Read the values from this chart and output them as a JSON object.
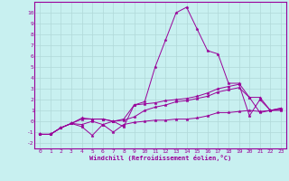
{
  "xlabel": "Windchill (Refroidissement éolien,°C)",
  "background_color": "#c8f0f0",
  "line_color": "#990099",
  "grid_color": "#b0d8d8",
  "xlim": [
    -0.5,
    23.5
  ],
  "ylim": [
    -2.5,
    11.0
  ],
  "xticks": [
    0,
    1,
    2,
    3,
    4,
    5,
    6,
    7,
    8,
    9,
    10,
    11,
    12,
    13,
    14,
    15,
    16,
    17,
    18,
    19,
    20,
    21,
    22,
    23
  ],
  "yticks": [
    -2,
    -1,
    0,
    1,
    2,
    3,
    4,
    5,
    6,
    7,
    8,
    9,
    10
  ],
  "series": [
    {
      "x": [
        0,
        1,
        2,
        3,
        4,
        5,
        6,
        7,
        8,
        9,
        10,
        11,
        12,
        13,
        14,
        15,
        16,
        17,
        18,
        19,
        20,
        21,
        22,
        23
      ],
      "y": [
        -1.2,
        -1.2,
        -0.6,
        -0.2,
        -0.3,
        0.0,
        -0.3,
        0.0,
        -0.5,
        1.5,
        1.8,
        5.0,
        7.5,
        10.0,
        10.5,
        8.5,
        6.5,
        6.2,
        3.5,
        3.5,
        2.2,
        0.8,
        1.0,
        1.1
      ]
    },
    {
      "x": [
        0,
        1,
        2,
        3,
        4,
        5,
        6,
        7,
        8,
        9,
        10,
        11,
        12,
        13,
        14,
        15,
        16,
        17,
        18,
        19,
        20,
        21,
        22,
        23
      ],
      "y": [
        -1.2,
        -1.2,
        -0.6,
        -0.2,
        -0.5,
        -1.3,
        -0.3,
        -1.0,
        -0.3,
        -0.1,
        0.0,
        0.1,
        0.1,
        0.2,
        0.2,
        0.3,
        0.5,
        0.8,
        0.8,
        0.9,
        1.0,
        0.9,
        1.0,
        1.0
      ]
    },
    {
      "x": [
        0,
        1,
        2,
        3,
        4,
        5,
        6,
        7,
        8,
        9,
        10,
        11,
        12,
        13,
        14,
        15,
        16,
        17,
        18,
        19,
        20,
        21,
        22,
        23
      ],
      "y": [
        -1.2,
        -1.2,
        -0.6,
        -0.2,
        0.2,
        0.2,
        0.2,
        0.0,
        0.1,
        0.4,
        1.0,
        1.3,
        1.5,
        1.8,
        1.9,
        2.1,
        2.3,
        2.7,
        2.9,
        3.1,
        2.2,
        2.2,
        1.0,
        1.2
      ]
    },
    {
      "x": [
        0,
        1,
        2,
        3,
        4,
        5,
        6,
        7,
        8,
        9,
        10,
        11,
        12,
        13,
        14,
        15,
        16,
        17,
        18,
        19,
        20,
        21,
        22,
        23
      ],
      "y": [
        -1.2,
        -1.2,
        -0.6,
        -0.2,
        0.3,
        0.2,
        0.2,
        0.0,
        0.2,
        1.5,
        1.6,
        1.7,
        1.9,
        2.0,
        2.1,
        2.3,
        2.6,
        3.0,
        3.2,
        3.4,
        0.5,
        2.0,
        1.0,
        1.2
      ]
    }
  ]
}
